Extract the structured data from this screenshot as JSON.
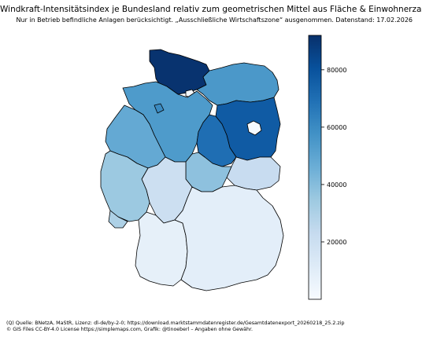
{
  "title": "Windkraft-Intensitätsindex je Bundesland relativ zum geometrischen Mittel aus Fläche & Einwohnerzahl",
  "subtitle": "Nur in Betrieb befindliche Anlagen berücksichtigt. „Ausschließliche Wirtschaftszone“ ausgenommen. Datenstand: 17.02.2026",
  "footer": {
    "line1": "(Q) Quelle: BNetzA, MaStR, Lizenz: dl-de/by-2-0; https://download.marktstammdatenregister.de/Gesamtdatenexport_20260218_25.2.zip",
    "line2": "© GIS Files CC-BY-4.0 License https://simplemaps.com, Grafik: @tinoeberl – Angaben ohne Gewähr."
  },
  "colorbar": {
    "range": [
      0,
      92000
    ],
    "ticks": [
      {
        "value": 20000,
        "label": "20000"
      },
      {
        "value": 40000,
        "label": "40000"
      },
      {
        "value": 60000,
        "label": "60000"
      },
      {
        "value": 80000,
        "label": "80000"
      }
    ],
    "colors": [
      "#f7fbff",
      "#deebf7",
      "#c6dbef",
      "#9ecae1",
      "#6baed6",
      "#4292c6",
      "#2171b5",
      "#08519c",
      "#08306b"
    ]
  },
  "states": [
    {
      "name": "Schleswig-Holstein",
      "value": 91000
    },
    {
      "name": "Hamburg",
      "value": 2000
    },
    {
      "name": "Mecklenburg-Vorpommern",
      "value": 55000
    },
    {
      "name": "Bremen",
      "value": 60000
    },
    {
      "name": "Niedersachsen",
      "value": 54000
    },
    {
      "name": "Berlin",
      "value": 1000
    },
    {
      "name": "Brandenburg",
      "value": 77000
    },
    {
      "name": "Sachsen-Anhalt",
      "value": 70000
    },
    {
      "name": "Nordrhein-Westfalen",
      "value": 48000
    },
    {
      "name": "Thüringen",
      "value": 38000
    },
    {
      "name": "Sachsen",
      "value": 22000
    },
    {
      "name": "Hessen",
      "value": 20000
    },
    {
      "name": "Rheinland-Pfalz",
      "value": 35000
    },
    {
      "name": "Saarland",
      "value": 30000
    },
    {
      "name": "Bayern",
      "value": 9000
    },
    {
      "name": "Baden-Württemberg",
      "value": 8000
    }
  ]
}
